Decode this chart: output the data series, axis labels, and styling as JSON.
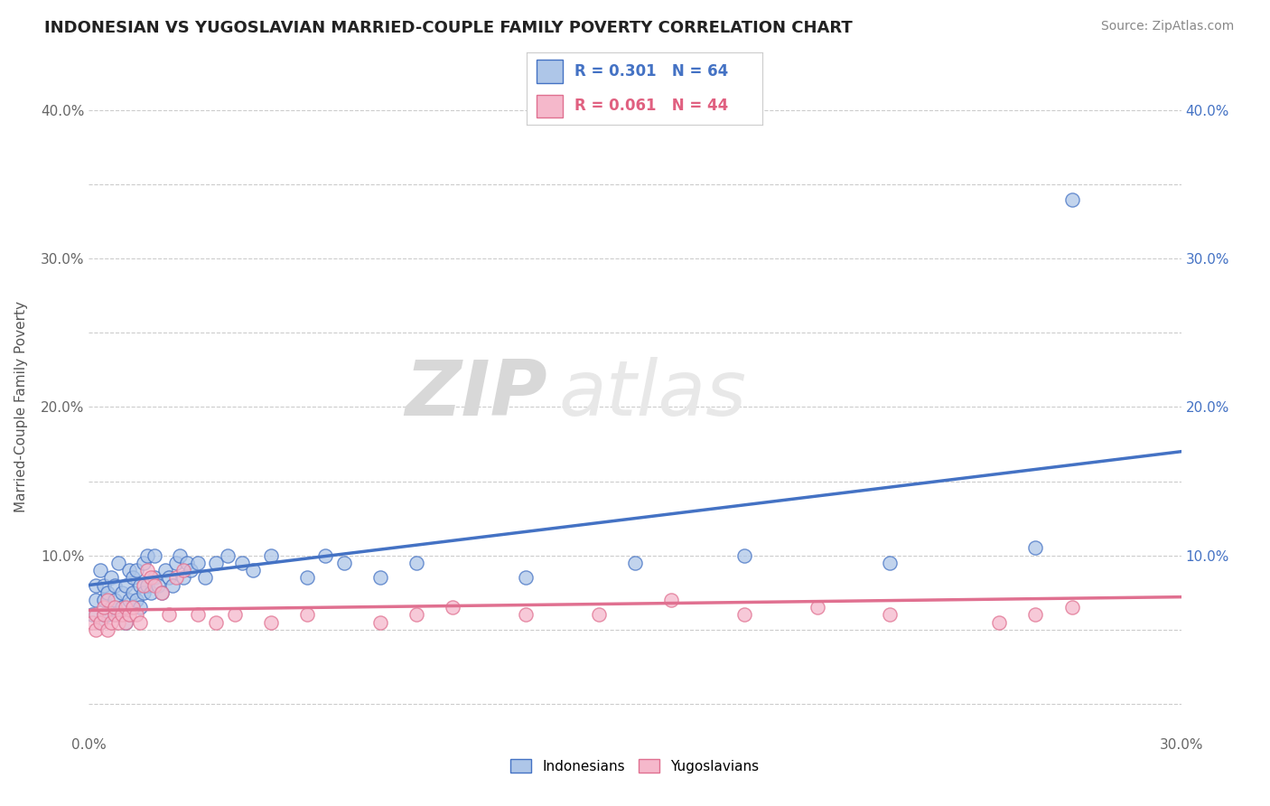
{
  "title": "INDONESIAN VS YUGOSLAVIAN MARRIED-COUPLE FAMILY POVERTY CORRELATION CHART",
  "source": "Source: ZipAtlas.com",
  "ylabel": "Married-Couple Family Poverty",
  "xlim": [
    0.0,
    0.3
  ],
  "ylim": [
    -0.02,
    0.42
  ],
  "xticks": [
    0.0,
    0.05,
    0.1,
    0.15,
    0.2,
    0.25,
    0.3
  ],
  "xticklabels": [
    "0.0%",
    "",
    "",
    "",
    "",
    "",
    "30.0%"
  ],
  "yticks": [
    0.0,
    0.05,
    0.1,
    0.15,
    0.2,
    0.25,
    0.3,
    0.35,
    0.4
  ],
  "yticklabels_left": [
    "",
    "",
    "10.0%",
    "",
    "20.0%",
    "",
    "30.0%",
    "",
    "40.0%"
  ],
  "yticklabels_right": [
    "",
    "",
    "10.0%",
    "",
    "20.0%",
    "",
    "30.0%",
    "",
    "40.0%"
  ],
  "indonesian_color": "#aec6e8",
  "yugoslavian_color": "#f5b8cb",
  "indonesian_line_color": "#4472c4",
  "yugoslavian_line_color": "#e07090",
  "legend_R1": "R = 0.301",
  "legend_N1": "N = 64",
  "legend_R2": "R = 0.061",
  "legend_N2": "N = 44",
  "legend_label1": "Indonesians",
  "legend_label2": "Yugoslavians",
  "watermark_zip": "ZIP",
  "watermark_atlas": "atlas",
  "indonesian_x": [
    0.001,
    0.002,
    0.002,
    0.003,
    0.003,
    0.004,
    0.004,
    0.004,
    0.005,
    0.005,
    0.006,
    0.006,
    0.007,
    0.007,
    0.007,
    0.008,
    0.008,
    0.009,
    0.009,
    0.01,
    0.01,
    0.011,
    0.011,
    0.012,
    0.012,
    0.013,
    0.013,
    0.014,
    0.014,
    0.015,
    0.015,
    0.016,
    0.016,
    0.017,
    0.018,
    0.018,
    0.019,
    0.02,
    0.021,
    0.022,
    0.023,
    0.024,
    0.025,
    0.026,
    0.027,
    0.028,
    0.03,
    0.032,
    0.035,
    0.038,
    0.042,
    0.045,
    0.05,
    0.06,
    0.065,
    0.07,
    0.08,
    0.09,
    0.12,
    0.15,
    0.18,
    0.22,
    0.26,
    0.27
  ],
  "indonesian_y": [
    0.06,
    0.07,
    0.08,
    0.055,
    0.09,
    0.06,
    0.07,
    0.08,
    0.06,
    0.075,
    0.065,
    0.085,
    0.06,
    0.07,
    0.08,
    0.06,
    0.095,
    0.065,
    0.075,
    0.055,
    0.08,
    0.07,
    0.09,
    0.075,
    0.085,
    0.07,
    0.09,
    0.065,
    0.08,
    0.075,
    0.095,
    0.08,
    0.1,
    0.075,
    0.085,
    0.1,
    0.08,
    0.075,
    0.09,
    0.085,
    0.08,
    0.095,
    0.1,
    0.085,
    0.095,
    0.09,
    0.095,
    0.085,
    0.095,
    0.1,
    0.095,
    0.09,
    0.1,
    0.085,
    0.1,
    0.095,
    0.085,
    0.095,
    0.085,
    0.095,
    0.1,
    0.095,
    0.105,
    0.34
  ],
  "yugoslavian_x": [
    0.001,
    0.002,
    0.002,
    0.003,
    0.004,
    0.004,
    0.005,
    0.005,
    0.006,
    0.007,
    0.007,
    0.008,
    0.009,
    0.01,
    0.01,
    0.011,
    0.012,
    0.013,
    0.014,
    0.015,
    0.016,
    0.017,
    0.018,
    0.02,
    0.022,
    0.024,
    0.026,
    0.03,
    0.035,
    0.04,
    0.05,
    0.06,
    0.08,
    0.09,
    0.1,
    0.12,
    0.14,
    0.16,
    0.18,
    0.2,
    0.22,
    0.25,
    0.26,
    0.27
  ],
  "yugoslavian_y": [
    0.055,
    0.05,
    0.06,
    0.055,
    0.06,
    0.065,
    0.05,
    0.07,
    0.055,
    0.06,
    0.065,
    0.055,
    0.06,
    0.055,
    0.065,
    0.06,
    0.065,
    0.06,
    0.055,
    0.08,
    0.09,
    0.085,
    0.08,
    0.075,
    0.06,
    0.085,
    0.09,
    0.06,
    0.055,
    0.06,
    0.055,
    0.06,
    0.055,
    0.06,
    0.065,
    0.06,
    0.06,
    0.07,
    0.06,
    0.065,
    0.06,
    0.055,
    0.06,
    0.065
  ]
}
